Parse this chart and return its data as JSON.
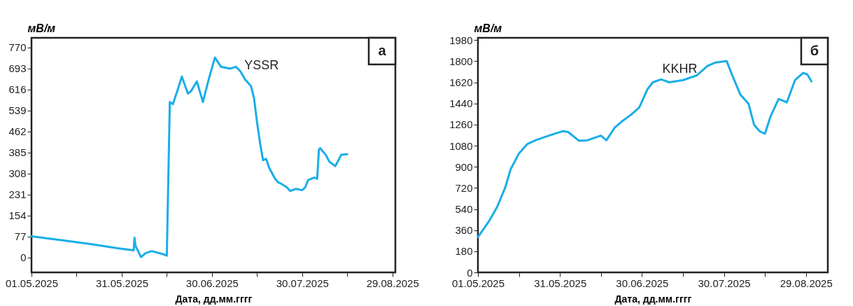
{
  "chart_data": [
    {
      "type": "line",
      "ylabel": "мВ/м",
      "xlabel": "Дата, дд.мм.гггг",
      "annotations": [
        "а"
      ],
      "xlim": [
        "2025-05-01",
        "2025-08-30"
      ],
      "ylim": [
        -54,
        805
      ],
      "xticks": [
        {
          "value": "2025-05-01",
          "label": "01.05.2025"
        },
        {
          "value": "2025-05-16",
          "label": null
        },
        {
          "value": "2025-05-31",
          "label": "31.05.2025"
        },
        {
          "value": "2025-06-15",
          "label": null
        },
        {
          "value": "2025-06-30",
          "label": "30.06.2025"
        },
        {
          "value": "2025-07-15",
          "label": null
        },
        {
          "value": "2025-07-30",
          "label": "30.07.2025"
        },
        {
          "value": "2025-08-14",
          "label": null
        },
        {
          "value": "2025-08-29",
          "label": "29.08.2025"
        }
      ],
      "yticks": [
        0,
        77,
        154,
        231,
        308,
        385,
        462,
        539,
        616,
        693,
        770
      ],
      "x": [
        "2025-05-01",
        "2025-05-06",
        "2025-05-11",
        "2025-05-21",
        "2025-05-30",
        "2025-06-04",
        "2025-06-04T06:00",
        "2025-06-04T14:00",
        "2025-06-06T10:00",
        "2025-06-08",
        "2025-06-10",
        "2025-06-14",
        "2025-06-15",
        "2025-06-16",
        "2025-06-17",
        "2025-06-18T12:00",
        "2025-06-20",
        "2025-06-22",
        "2025-06-23",
        "2025-06-25",
        "2025-06-27",
        "2025-06-29",
        "2025-07-01",
        "2025-07-03",
        "2025-07-06",
        "2025-07-08",
        "2025-07-09T12:00",
        "2025-07-11",
        "2025-07-13",
        "2025-07-14",
        "2025-07-15",
        "2025-07-16",
        "2025-07-17",
        "2025-07-18",
        "2025-07-19",
        "2025-07-21",
        "2025-07-22",
        "2025-07-23",
        "2025-07-25",
        "2025-07-26",
        "2025-07-28",
        "2025-07-30",
        "2025-07-31",
        "2025-08-01",
        "2025-08-03",
        "2025-08-04",
        "2025-08-04T14:00",
        "2025-08-05",
        "2025-08-07",
        "2025-08-08",
        "2025-08-10",
        "2025-08-11",
        "2025-08-12",
        "2025-08-14"
      ],
      "series": [
        {
          "name": "YSSR",
          "color": "#19aee8",
          "values": [
            78,
            71,
            64,
            49,
            34,
            27,
            73,
            44,
            2,
            17,
            24,
            12,
            7,
            570,
            562,
            611,
            663,
            601,
            609,
            645,
            570,
            655,
            733,
            699,
            692,
            699,
            682,
            653,
            628,
            584,
            496,
            420,
            357,
            362,
            330,
            289,
            276,
            271,
            257,
            244,
            252,
            247,
            257,
            284,
            293,
            289,
            396,
            401,
            374,
            352,
            335,
            355,
            377,
            379
          ]
        }
      ]
    },
    {
      "type": "line",
      "ylabel": "мВ/м",
      "xlabel": "Дата, дд.мм.гггг",
      "annotations": [
        "б"
      ],
      "xlim": [
        "2025-05-01",
        "2025-09-06"
      ],
      "ylim": [
        0,
        2000
      ],
      "xticks": [
        {
          "value": "2025-05-01",
          "label": "01.05.2025"
        },
        {
          "value": "2025-05-16",
          "label": null
        },
        {
          "value": "2025-05-31",
          "label": "31.05.2025"
        },
        {
          "value": "2025-06-15",
          "label": null
        },
        {
          "value": "2025-06-30",
          "label": "30.06.2025"
        },
        {
          "value": "2025-07-15",
          "label": null
        },
        {
          "value": "2025-07-30",
          "label": "30.07.2025"
        },
        {
          "value": "2025-08-14",
          "label": null
        },
        {
          "value": "2025-08-29",
          "label": "29.08.2025"
        }
      ],
      "yticks": [
        0,
        180,
        360,
        540,
        720,
        900,
        1080,
        1260,
        1440,
        1620,
        1800,
        1980
      ],
      "x": [
        "2025-05-01",
        "2025-05-05",
        "2025-05-08",
        "2025-05-11",
        "2025-05-13",
        "2025-05-16",
        "2025-05-19",
        "2025-05-22",
        "2025-05-27",
        "2025-06-01",
        "2025-06-03",
        "2025-06-07",
        "2025-06-10",
        "2025-06-15",
        "2025-06-17",
        "2025-06-20",
        "2025-06-23",
        "2025-06-26",
        "2025-06-29",
        "2025-07-02",
        "2025-07-04",
        "2025-07-07",
        "2025-07-10",
        "2025-07-15",
        "2025-07-20",
        "2025-07-24",
        "2025-07-27",
        "2025-07-31",
        "2025-08-02",
        "2025-08-05",
        "2025-08-08",
        "2025-08-10",
        "2025-08-12",
        "2025-08-14",
        "2025-08-16",
        "2025-08-19",
        "2025-08-21",
        "2025-08-22",
        "2025-08-25",
        "2025-08-28",
        "2025-08-29T12:00",
        "2025-08-31"
      ],
      "series": [
        {
          "name": "KKHR",
          "color": "#19aee8",
          "values": [
            301,
            435,
            557,
            725,
            881,
            1014,
            1093,
            1126,
            1166,
            1204,
            1197,
            1122,
            1126,
            1166,
            1126,
            1233,
            1293,
            1344,
            1405,
            1561,
            1621,
            1646,
            1621,
            1639,
            1679,
            1761,
            1790,
            1802,
            1683,
            1516,
            1438,
            1260,
            1204,
            1182,
            1327,
            1478,
            1460,
            1449,
            1639,
            1701,
            1688,
            1628
          ]
        }
      ]
    }
  ]
}
